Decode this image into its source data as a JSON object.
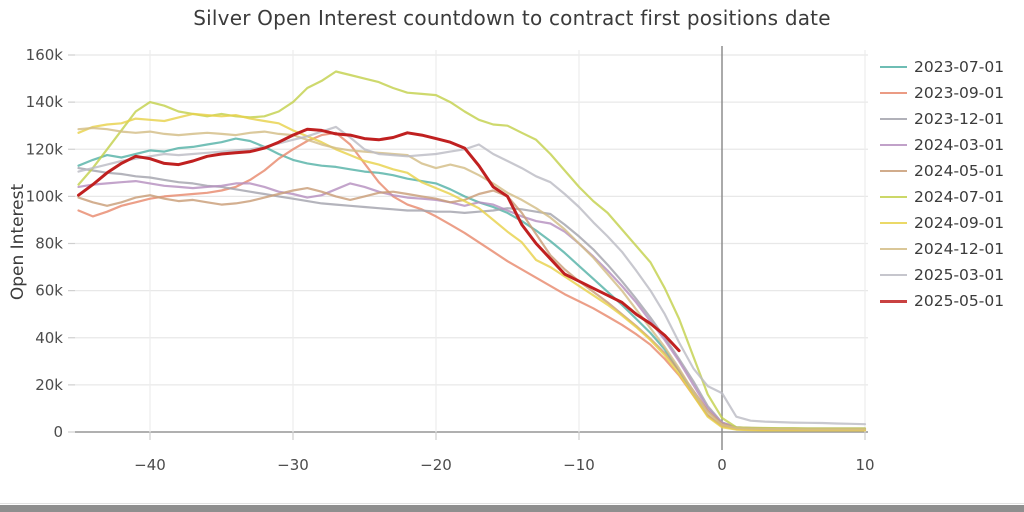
{
  "title": "Silver Open Interest countdown to contract first positions date",
  "y_axis": {
    "label": "Open Interest",
    "tick_labels": [
      "0",
      "20k",
      "40k",
      "60k",
      "80k",
      "100k",
      "120k",
      "140k",
      "160k"
    ],
    "tick_values_k": [
      0,
      20,
      40,
      60,
      80,
      100,
      120,
      140,
      160
    ]
  },
  "x_axis": {
    "tick_labels": [
      "−40",
      "−30",
      "−20",
      "−10",
      "0",
      "10"
    ],
    "tick_values": [
      -40,
      -30,
      -20,
      -10,
      0,
      10
    ]
  },
  "window": {
    "bottom_bar_color": "#8f8f8f"
  },
  "chart_data": {
    "type": "line",
    "title": "Silver Open Interest countdown to contract first positions date",
    "xlabel": "",
    "ylabel": "Open Interest",
    "units": "thousands of contracts (k)",
    "xlim": [
      -45.3,
      10.3
    ],
    "ylim_k": [
      0,
      160
    ],
    "grid": true,
    "legend_position": "right",
    "zero_marker_x": 0,
    "x": [
      -45,
      -44,
      -43,
      -42,
      -41,
      -40,
      -39,
      -38,
      -37,
      -36,
      -35,
      -34,
      -33,
      -32,
      -31,
      -30,
      -29,
      -28,
      -27,
      -26,
      -25,
      -24,
      -23,
      -22,
      -21,
      -20,
      -19,
      -18,
      -17,
      -16,
      -15,
      -14,
      -13,
      -12,
      -11,
      -10,
      -9,
      -8,
      -7,
      -6,
      -5,
      -4,
      -3,
      -2,
      -1,
      0,
      1,
      2,
      3,
      4,
      5,
      6,
      7,
      8,
      9,
      10
    ],
    "series": [
      {
        "name": "2023-07-01",
        "color": "#55b2a7",
        "width": 2.2,
        "values_k": [
          113,
          115.5,
          117.5,
          116.5,
          118,
          119.5,
          119,
          120.5,
          121,
          122,
          123,
          124.5,
          123.5,
          121,
          118,
          115.5,
          114,
          113,
          112.5,
          111.5,
          110.5,
          110,
          109,
          107.5,
          106.5,
          105.5,
          103,
          100,
          97.5,
          95.5,
          93,
          89.5,
          85.5,
          81,
          76,
          70.5,
          65,
          59.5,
          54,
          48,
          42,
          35,
          26,
          16,
          7,
          2.5,
          1.8,
          1.5,
          1.4,
          1.3,
          1.3,
          1.2,
          1.2,
          1.2,
          1.2,
          1.2
        ]
      },
      {
        "name": "2023-09-01",
        "color": "#e88a6e",
        "width": 2.2,
        "values_k": [
          94,
          91.5,
          93.5,
          96,
          97.5,
          99,
          100,
          100.5,
          101,
          101.5,
          102.5,
          104,
          107,
          111,
          116,
          120,
          123.5,
          126,
          127,
          122,
          114,
          106,
          100,
          96.5,
          94.5,
          91.5,
          88,
          84.5,
          80.5,
          76.5,
          72.5,
          69,
          65.5,
          62,
          58.5,
          55.5,
          52.5,
          49,
          45.5,
          41.5,
          37,
          31,
          24,
          15.5,
          7,
          2.5,
          1.2,
          1,
          0.9,
          0.9,
          0.8,
          0.8,
          0.8,
          0.8,
          0.8,
          0.8
        ]
      },
      {
        "name": "2023-12-01",
        "color": "#a3a3ad",
        "width": 2.2,
        "values_k": [
          112,
          111,
          110,
          109.5,
          108.5,
          108,
          107,
          106,
          105.5,
          104.5,
          104,
          103,
          102,
          101,
          100,
          99,
          98,
          97,
          96.5,
          96,
          95.5,
          95,
          94.5,
          94,
          94,
          93.5,
          93.5,
          93,
          93.5,
          94,
          95,
          94.5,
          93.5,
          92.5,
          88,
          83,
          77.5,
          71,
          64,
          56.5,
          48.5,
          40,
          31,
          21.5,
          11,
          4,
          2,
          1.7,
          1.6,
          1.5,
          1.5,
          1.5,
          1.5,
          1.5,
          1.5,
          1.5
        ]
      },
      {
        "name": "2024-03-01",
        "color": "#b690bf",
        "width": 2.2,
        "values_k": [
          104,
          105,
          105.5,
          106,
          106.5,
          105.5,
          104.5,
          104,
          103.5,
          104,
          104.5,
          105.5,
          105.5,
          104,
          102,
          101,
          99.5,
          100.5,
          103,
          105.5,
          104,
          102,
          100.5,
          99.5,
          99,
          98.5,
          97.5,
          96,
          97.5,
          96.5,
          94,
          91.5,
          89.5,
          88.5,
          85,
          80,
          74.5,
          68.5,
          62,
          55,
          47,
          39,
          30,
          20,
          10,
          4,
          2,
          1.8,
          1.6,
          1.5,
          1.5,
          1.4,
          1.4,
          1.4,
          1.4,
          1.4
        ]
      },
      {
        "name": "2024-05-01",
        "color": "#c99e78",
        "width": 2.2,
        "values_k": [
          99.5,
          97.5,
          96,
          97.5,
          99.5,
          100.5,
          99,
          98,
          98.5,
          97.5,
          96.5,
          97,
          98,
          99.5,
          101,
          102.5,
          103.5,
          102,
          100,
          98.5,
          100,
          101.5,
          102,
          101,
          100,
          99,
          97.5,
          98.5,
          101,
          102.5,
          100,
          93,
          84,
          75,
          69,
          64,
          59.5,
          55,
          50,
          45,
          39.5,
          33.5,
          26,
          17.5,
          9,
          3.5,
          1.7,
          1.4,
          1.2,
          1.1,
          1.1,
          1,
          1,
          1,
          1,
          1
        ]
      },
      {
        "name": "2024-07-01",
        "color": "#c3d14d",
        "width": 2.2,
        "values_k": [
          105,
          112,
          120,
          128,
          136,
          140,
          138.5,
          136,
          135,
          134,
          135,
          134,
          133.5,
          134,
          136,
          140,
          146,
          149,
          153,
          151.5,
          150,
          148.5,
          146,
          144,
          143.5,
          143,
          140,
          136,
          132.5,
          130.5,
          130,
          127,
          124,
          118,
          111,
          104,
          98,
          93,
          86,
          79,
          72,
          61,
          48,
          32,
          16,
          6,
          2,
          1.8,
          1.7,
          1.6,
          1.6,
          1.5,
          1.5,
          1.5,
          1.5,
          1.5
        ]
      },
      {
        "name": "2024-09-01",
        "color": "#e8d24c",
        "width": 2.2,
        "values_k": [
          127,
          129.5,
          130.5,
          131,
          133,
          132.5,
          132,
          133.5,
          135,
          134.5,
          134,
          134.5,
          133,
          132,
          131,
          128,
          125.5,
          123,
          120,
          117.5,
          115,
          113.5,
          111.5,
          110,
          106,
          103.5,
          101,
          98,
          95,
          90,
          85,
          80.5,
          73,
          70,
          66,
          62,
          58,
          54,
          49.5,
          44.5,
          39,
          32.5,
          24.5,
          15.5,
          6.5,
          2,
          1,
          0.8,
          0.7,
          0.7,
          0.7,
          0.7,
          0.7,
          0.7,
          0.7,
          0.7
        ]
      },
      {
        "name": "2024-12-01",
        "color": "#d3bd86",
        "width": 2.2,
        "values_k": [
          128.5,
          129,
          128.5,
          127.5,
          127,
          127.5,
          126.5,
          126,
          126.5,
          127,
          126.5,
          126,
          127,
          127.5,
          126.5,
          126,
          124,
          122,
          120.5,
          119.5,
          119,
          118.5,
          118,
          117.5,
          114,
          112,
          113.5,
          112,
          109,
          105.5,
          101.5,
          98.5,
          95,
          91,
          86,
          80,
          74,
          67,
          60,
          52,
          44,
          36,
          27,
          17,
          8,
          3,
          1.6,
          1.4,
          1.3,
          1.2,
          1.2,
          1.1,
          1.1,
          1.1,
          1.1,
          1.1
        ]
      },
      {
        "name": "2025-03-01",
        "color": "#bcbcc4",
        "width": 2.2,
        "values_k": [
          110.5,
          112,
          113.5,
          115,
          116,
          117,
          118,
          117.5,
          118,
          118.5,
          119,
          119.5,
          120,
          121,
          122.5,
          124,
          125.5,
          127.5,
          129.5,
          125,
          120,
          118,
          117.5,
          117,
          117.5,
          118,
          119,
          120,
          122,
          118,
          115,
          112,
          108.5,
          106,
          101,
          95.5,
          89,
          83,
          76.5,
          68.5,
          60,
          50,
          38,
          27,
          19.5,
          16.5,
          6.5,
          4.8,
          4.4,
          4.2,
          4,
          3.9,
          3.8,
          3.6,
          3.5,
          3.3
        ]
      },
      {
        "name": "2025-05-01",
        "color": "#c02020",
        "width": 3,
        "values_k": [
          100.5,
          105,
          110,
          114,
          117,
          116,
          114,
          113.5,
          115,
          117,
          118,
          118.5,
          119,
          120.5,
          123,
          126,
          128.5,
          128,
          126.5,
          126,
          124.5,
          124,
          125,
          127,
          126,
          124.5,
          123,
          120.5,
          113,
          104,
          100,
          88,
          80,
          73.5,
          67,
          64,
          61,
          58,
          55,
          50,
          46,
          41,
          34.5,
          null,
          null,
          null,
          null,
          null,
          null,
          null,
          null,
          null,
          null,
          null,
          null,
          null
        ]
      }
    ]
  }
}
